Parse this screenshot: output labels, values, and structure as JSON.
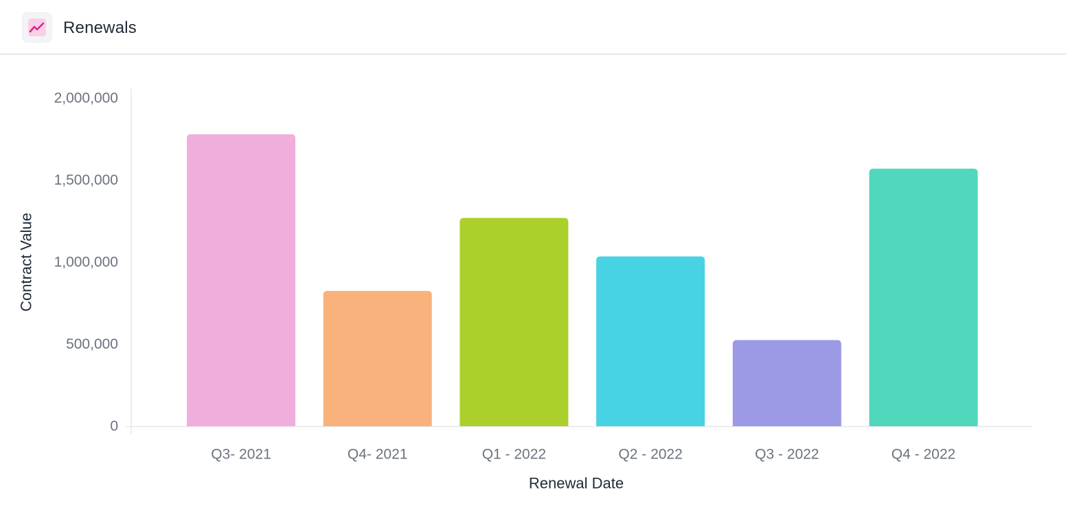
{
  "header": {
    "title": "Renewals",
    "icon": "trend-line-icon",
    "icon_color": "#d9268b",
    "icon_bg": "#f9d0ea"
  },
  "chart_data": {
    "type": "bar",
    "title": "",
    "xlabel": "Renewal Date",
    "ylabel": "Contract Value",
    "categories": [
      "Q3- 2021",
      "Q4- 2021",
      "Q1 - 2022",
      "Q2 - 2022",
      "Q3 - 2022",
      "Q4 - 2022"
    ],
    "values": [
      1780000,
      825000,
      1270000,
      1035000,
      525000,
      1570000
    ],
    "colors": [
      "#f0aedc",
      "#f9b27b",
      "#acd02b",
      "#47d3e3",
      "#9c9ae5",
      "#51d7bc"
    ],
    "ylim": [
      0,
      2000000
    ],
    "yticks": [
      0,
      500000,
      1000000,
      1500000,
      2000000
    ],
    "ytick_labels": [
      "0",
      "500,000",
      "1,000,000",
      "1,500,000",
      "2,000,000"
    ],
    "grid": false,
    "legend": "none"
  }
}
